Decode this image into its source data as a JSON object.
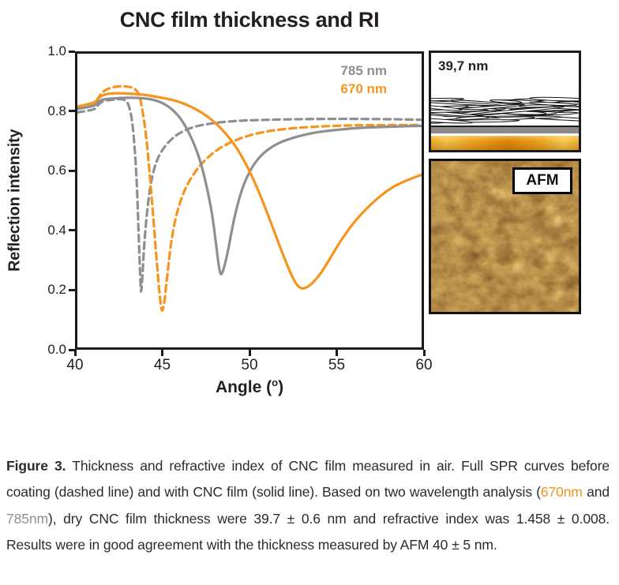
{
  "chart_data": {
    "type": "line",
    "title": "CNC film thickness and RI",
    "xlabel": "Angle (°)",
    "ylabel": "Reflection intensity",
    "xlim": [
      40,
      60
    ],
    "ylim": [
      0,
      1
    ],
    "grid": false,
    "legend_position": "top-right inside",
    "xticks": [
      "40",
      "45",
      "50",
      "55",
      "60"
    ],
    "xtick_values": [
      40,
      45,
      50,
      55,
      60
    ],
    "yticks": [
      "0.0",
      "0.2",
      "0.4",
      "0.6",
      "0.8",
      "1.0"
    ],
    "ytick_values": [
      0,
      0.2,
      0.4,
      0.6,
      0.8,
      1.0
    ],
    "legend": [
      {
        "label": "785 nm",
        "color": "#8D8F92"
      },
      {
        "label": "670 nm",
        "color": "#F7941E"
      }
    ],
    "series": [
      {
        "id": "785nm-before-coating",
        "name": "785 nm before coating (dashed)",
        "color": "#8D8F92",
        "dashed": true,
        "points": [
          [
            40,
            0.8
          ],
          [
            40.6,
            0.806
          ],
          [
            41.0,
            0.812
          ],
          [
            41.25,
            0.828
          ],
          [
            41.5,
            0.838
          ],
          [
            42.0,
            0.843
          ],
          [
            42.4,
            0.845
          ],
          [
            42.7,
            0.843
          ],
          [
            42.95,
            0.828
          ],
          [
            43.15,
            0.78
          ],
          [
            43.3,
            0.7
          ],
          [
            43.45,
            0.56
          ],
          [
            43.55,
            0.4
          ],
          [
            43.65,
            0.245
          ],
          [
            43.7,
            0.19
          ],
          [
            43.78,
            0.245
          ],
          [
            43.9,
            0.36
          ],
          [
            44.05,
            0.46
          ],
          [
            44.25,
            0.55
          ],
          [
            44.5,
            0.615
          ],
          [
            44.8,
            0.658
          ],
          [
            45.2,
            0.692
          ],
          [
            45.7,
            0.72
          ],
          [
            46.3,
            0.74
          ],
          [
            47.0,
            0.754
          ],
          [
            48.0,
            0.764
          ],
          [
            49.0,
            0.77
          ],
          [
            50.0,
            0.773
          ],
          [
            52.0,
            0.776
          ],
          [
            55.0,
            0.778
          ],
          [
            58.0,
            0.777
          ],
          [
            60.0,
            0.775
          ]
        ]
      },
      {
        "id": "670nm-before-coating",
        "name": "670 nm before coating (dashed)",
        "color": "#F7941E",
        "dashed": true,
        "points": [
          [
            40,
            0.813
          ],
          [
            40.6,
            0.822
          ],
          [
            41.0,
            0.83
          ],
          [
            41.2,
            0.848
          ],
          [
            41.45,
            0.868
          ],
          [
            41.8,
            0.881
          ],
          [
            42.2,
            0.887
          ],
          [
            42.6,
            0.889
          ],
          [
            43.0,
            0.887
          ],
          [
            43.35,
            0.879
          ],
          [
            43.6,
            0.856
          ],
          [
            43.8,
            0.8
          ],
          [
            44.0,
            0.715
          ],
          [
            44.2,
            0.59
          ],
          [
            44.4,
            0.45
          ],
          [
            44.6,
            0.3
          ],
          [
            44.75,
            0.2
          ],
          [
            44.9,
            0.128
          ],
          [
            45.05,
            0.155
          ],
          [
            45.25,
            0.26
          ],
          [
            45.5,
            0.375
          ],
          [
            45.8,
            0.46
          ],
          [
            46.2,
            0.53
          ],
          [
            46.7,
            0.585
          ],
          [
            47.3,
            0.63
          ],
          [
            48.0,
            0.667
          ],
          [
            48.8,
            0.695
          ],
          [
            49.8,
            0.718
          ],
          [
            51.0,
            0.735
          ],
          [
            52.5,
            0.746
          ],
          [
            54.0,
            0.752
          ],
          [
            56.0,
            0.756
          ],
          [
            58.0,
            0.757
          ],
          [
            60.0,
            0.757
          ]
        ]
      },
      {
        "id": "785nm-cnc-film",
        "name": "785 nm with CNC film (solid)",
        "color": "#8D8F92",
        "dashed": false,
        "points": [
          [
            40,
            0.812
          ],
          [
            40.6,
            0.818
          ],
          [
            41.0,
            0.824
          ],
          [
            41.25,
            0.838
          ],
          [
            41.6,
            0.845
          ],
          [
            42.2,
            0.848
          ],
          [
            43.0,
            0.85
          ],
          [
            43.8,
            0.848
          ],
          [
            44.4,
            0.843
          ],
          [
            45.0,
            0.83
          ],
          [
            45.5,
            0.81
          ],
          [
            46.0,
            0.778
          ],
          [
            46.5,
            0.728
          ],
          [
            47.0,
            0.658
          ],
          [
            47.4,
            0.576
          ],
          [
            47.8,
            0.462
          ],
          [
            48.05,
            0.355
          ],
          [
            48.2,
            0.285
          ],
          [
            48.33,
            0.25
          ],
          [
            48.5,
            0.268
          ],
          [
            48.75,
            0.33
          ],
          [
            49.1,
            0.435
          ],
          [
            49.5,
            0.525
          ],
          [
            49.9,
            0.585
          ],
          [
            50.4,
            0.634
          ],
          [
            51.0,
            0.67
          ],
          [
            51.8,
            0.698
          ],
          [
            52.8,
            0.718
          ],
          [
            54.0,
            0.733
          ],
          [
            55.5,
            0.743
          ],
          [
            57.0,
            0.749
          ],
          [
            58.5,
            0.752
          ],
          [
            60.0,
            0.754
          ]
        ]
      },
      {
        "id": "670nm-cnc-film",
        "name": "670 nm with CNC film (solid)",
        "color": "#F7941E",
        "dashed": false,
        "points": [
          [
            40,
            0.82
          ],
          [
            40.6,
            0.828
          ],
          [
            41.0,
            0.835
          ],
          [
            41.25,
            0.85
          ],
          [
            41.6,
            0.861
          ],
          [
            42.2,
            0.865
          ],
          [
            43.0,
            0.864
          ],
          [
            44.0,
            0.859
          ],
          [
            45.0,
            0.849
          ],
          [
            45.8,
            0.838
          ],
          [
            46.5,
            0.822
          ],
          [
            47.2,
            0.8
          ],
          [
            47.8,
            0.775
          ],
          [
            48.4,
            0.742
          ],
          [
            49.0,
            0.7
          ],
          [
            49.5,
            0.655
          ],
          [
            50.0,
            0.6
          ],
          [
            50.5,
            0.535
          ],
          [
            51.0,
            0.462
          ],
          [
            51.5,
            0.385
          ],
          [
            52.0,
            0.308
          ],
          [
            52.4,
            0.252
          ],
          [
            52.7,
            0.218
          ],
          [
            53.0,
            0.202
          ],
          [
            53.3,
            0.204
          ],
          [
            53.7,
            0.222
          ],
          [
            54.2,
            0.258
          ],
          [
            54.7,
            0.305
          ],
          [
            55.3,
            0.362
          ],
          [
            56.0,
            0.42
          ],
          [
            56.8,
            0.472
          ],
          [
            57.6,
            0.515
          ],
          [
            58.4,
            0.548
          ],
          [
            59.2,
            0.57
          ],
          [
            60.0,
            0.588
          ]
        ]
      }
    ]
  },
  "chart_labels": {
    "xlabel_pre": "Angle (",
    "xlabel_sup": "o",
    "xlabel_post": ")"
  },
  "schematic": {
    "thickness_label": "39,7 nm",
    "layers": [
      "CNC film (nanocrystal rods)",
      "metal layer",
      "gold substrate"
    ]
  },
  "afm": {
    "label": "AFM"
  },
  "caption": {
    "figure_label": "Figure 3.",
    "text_1": " Thickness and refractive index of CNC film measured in air. Full SPR curves before coating (dashed line) and with CNC film (solid line). Based on two wavelength analysis (",
    "wavelength_670": "670nm",
    "text_2": " and ",
    "wavelength_785": "785nm",
    "text_3": "), dry CNC film thickness were 39.7 ± 0.6 nm and refractive index was 1.458 ± 0.008. Results were in good agreement with the thickness measured by AFM 40 ± 5 nm."
  },
  "colors": {
    "orange": "#F7941E",
    "gray": "#8D8F92",
    "ink": "#231F20",
    "caption_text": "#2B2B2B",
    "afm_dark_brown": "#3A2106",
    "afm_gold": "#E2B04A"
  }
}
